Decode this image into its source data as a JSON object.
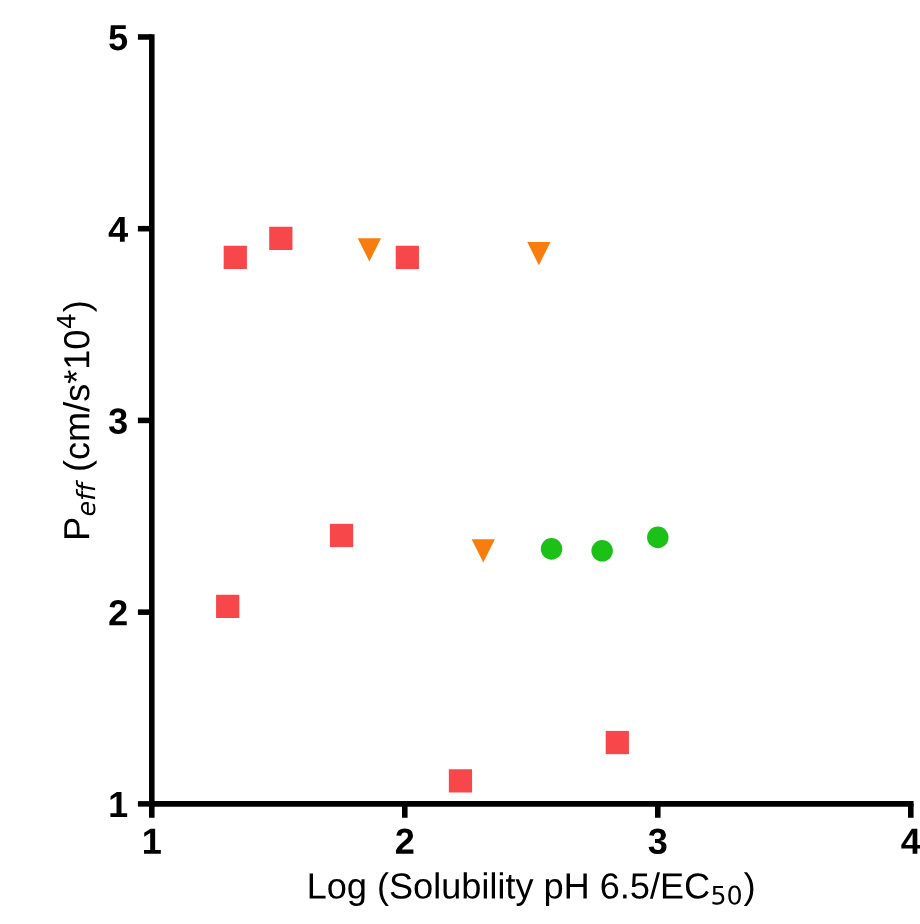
{
  "chart_data": {
    "type": "scatter",
    "xlabel": "Log (Solubility pH 6.5/EC$_{50}$)",
    "ylabel": "P$_{eff}$ (cm/s*10$^{4}$)",
    "xlim": [
      1,
      4
    ],
    "xticks": [
      1,
      2,
      3,
      4
    ],
    "ylim": [
      1,
      5
    ],
    "yticks": [
      1,
      2,
      3,
      4,
      5
    ],
    "grid": false,
    "legend": false,
    "series": [
      {
        "color": "#f8474b",
        "marker": "square",
        "x": [
          1.33,
          1.51,
          2.01,
          1.75,
          1.3,
          2.22,
          2.84
        ],
        "values": [
          3.85,
          3.95,
          3.85,
          2.4,
          2.03,
          1.12,
          1.32
        ]
      },
      {
        "color": "#f97c0e",
        "marker": "triangle",
        "x": [
          1.86,
          2.53,
          2.31
        ],
        "values": [
          3.89,
          3.87,
          2.32
        ]
      },
      {
        "color": "#1cc117",
        "marker": "circle",
        "x": [
          2.58,
          2.78,
          3.0
        ],
        "values": [
          2.33,
          2.32,
          2.39
        ]
      }
    ]
  }
}
